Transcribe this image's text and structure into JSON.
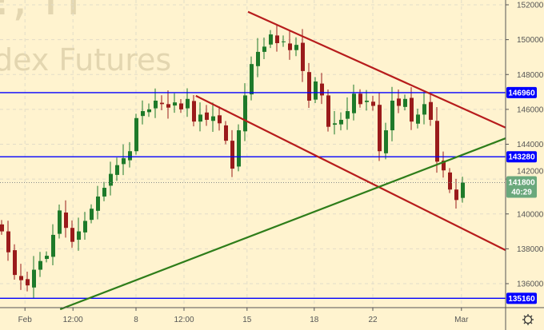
{
  "watermark": {
    "line1": "!, H",
    "line2": "dex Futures"
  },
  "chart_data": {
    "type": "candlestick",
    "title": "",
    "ylim": [
      134700,
      152700
    ],
    "y_ticks": [
      136000,
      138000,
      140000,
      142000,
      144000,
      146000,
      148000,
      150000,
      152000
    ],
    "x_ticks": [
      {
        "label": "Feb",
        "at": 3.9
      },
      {
        "label": "12:00",
        "at": 11.4
      },
      {
        "label": "8",
        "at": 21.25
      },
      {
        "label": "12:00",
        "at": 28.75
      },
      {
        "label": "15",
        "at": 38.6
      },
      {
        "label": "18",
        "at": 49.1
      },
      {
        "label": "22",
        "at": 58.25
      },
      {
        "label": "Mar",
        "at": 72.1
      }
    ],
    "grid": true,
    "closes": [
      139000,
      137800,
      136500,
      136200,
      135900,
      136800,
      137300,
      137600,
      138800,
      140200,
      139200,
      138400,
      139000,
      139600,
      140300,
      141000,
      141500,
      142300,
      142800,
      143200,
      143600,
      145500,
      145900,
      146000,
      146500,
      146300,
      146100,
      146400,
      146000,
      146600,
      145300,
      145700,
      145400,
      145600,
      145200,
      144200,
      142600,
      144800,
      146800,
      148600,
      149300,
      149600,
      150300,
      149800,
      149900,
      149400,
      149700,
      148200,
      146500,
      147600,
      146800,
      145000,
      145200,
      145400,
      145900,
      146900,
      146300,
      146500,
      146200,
      143600,
      144800,
      146500,
      146200,
      146600,
      145300,
      145700,
      146300,
      145400,
      143000,
      142500,
      141400,
      140800,
      141800
    ],
    "horizontal_levels": [
      {
        "price": 146960,
        "label": "146960",
        "color": "#0000ff"
      },
      {
        "price": 143280,
        "label": "143280",
        "color": "#0000ff"
      },
      {
        "price": 135160,
        "label": "135160",
        "color": "#0000ff"
      }
    ],
    "trend_lines": [
      {
        "from": [
          38.75,
          151600
        ],
        "to": [
          79,
          144950
        ],
        "color": "#b71c1c"
      },
      {
        "from": [
          30.6,
          146780
        ],
        "to": [
          79,
          137920
        ],
        "color": "#b71c1c"
      },
      {
        "from": [
          9.4,
          134530
        ],
        "to": [
          79,
          144340
        ],
        "color": "#2e7d1a"
      }
    ],
    "last_price": {
      "price": 141800,
      "label": "141800",
      "countdown": "40:29",
      "color": "#6aa87c"
    },
    "up_color": "#1e7a2a",
    "down_color": "#9a1b1b"
  },
  "settings_icon": "gear-icon"
}
